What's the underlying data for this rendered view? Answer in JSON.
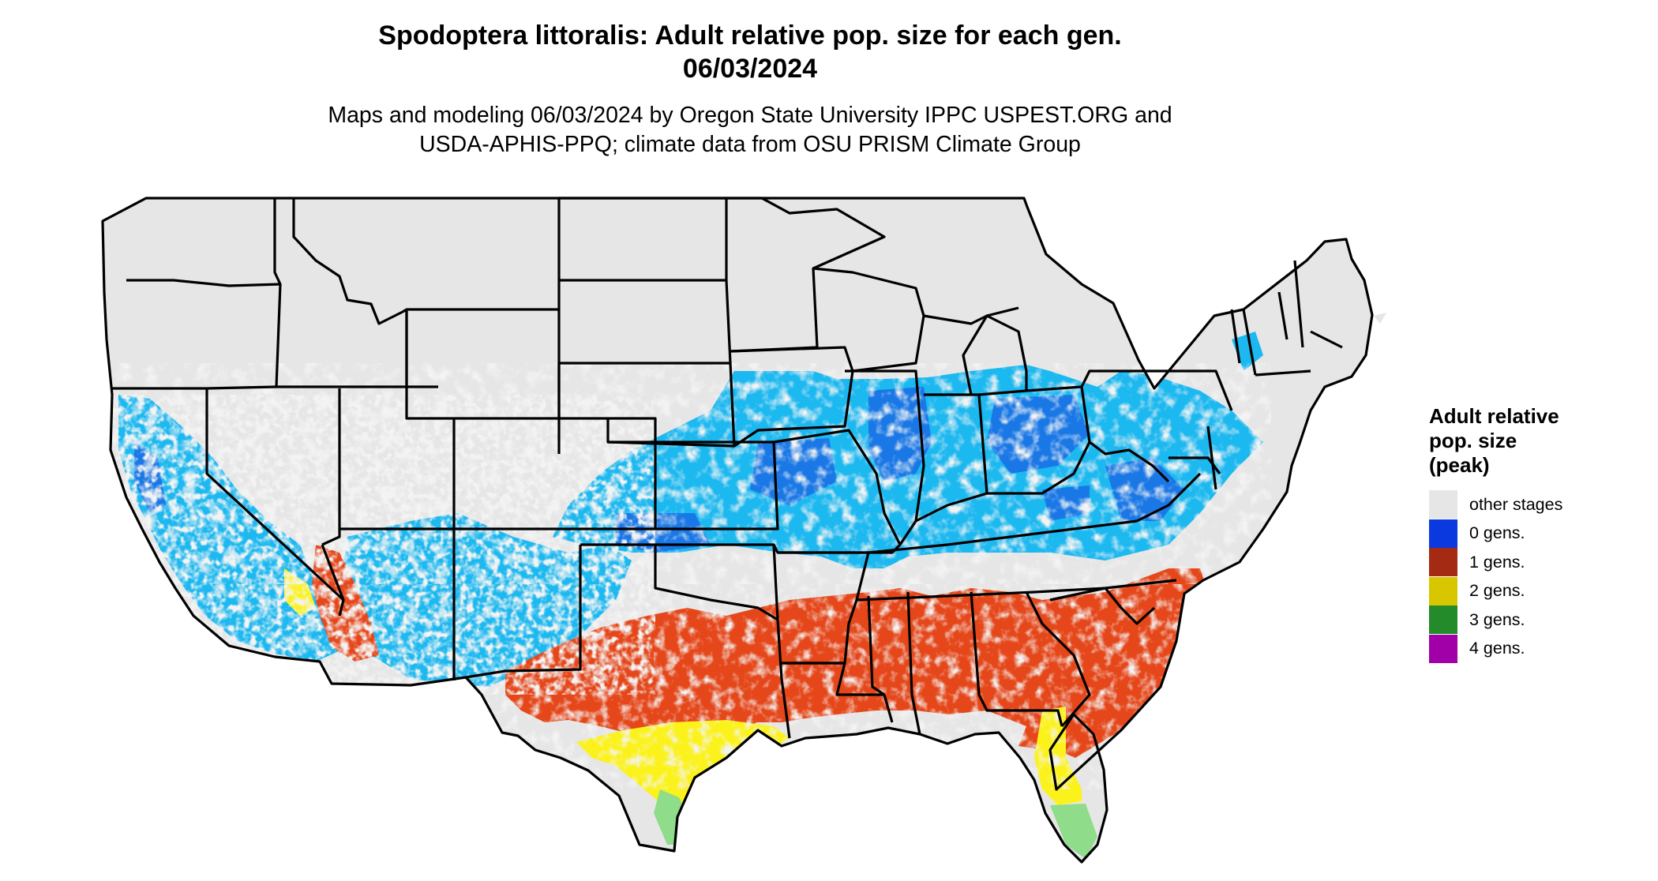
{
  "title": {
    "line1": "Spodoptera littoralis: Adult relative pop. size for each gen.",
    "line2": "06/03/2024"
  },
  "subtitle": {
    "line1": "Maps and modeling 06/03/2024 by Oregon State University IPPC USPEST.ORG and",
    "line2": "USDA-APHIS-PPQ; climate data from OSU PRISM Climate Group"
  },
  "legend": {
    "title_lines": [
      "Adult relative",
      "pop. size",
      "(peak)"
    ],
    "items": [
      {
        "label": "other stages",
        "color": "#e6e6e6"
      },
      {
        "label": "0 gens.",
        "color": "#0a3adf"
      },
      {
        "label": "1 gens.",
        "color": "#a52a14"
      },
      {
        "label": "2 gens.",
        "color": "#d8c700"
      },
      {
        "label": "3 gens.",
        "color": "#238b2a"
      },
      {
        "label": "4 gens.",
        "color": "#a100a8"
      }
    ]
  },
  "map_colors": {
    "background": "#e6e6e6",
    "light_blue": "#1cb8f0",
    "dark_blue": "#1a78e6",
    "orange_red": "#e5471a",
    "yellow": "#fbf21c",
    "green": "#8fdc8a",
    "border": "#000000"
  }
}
